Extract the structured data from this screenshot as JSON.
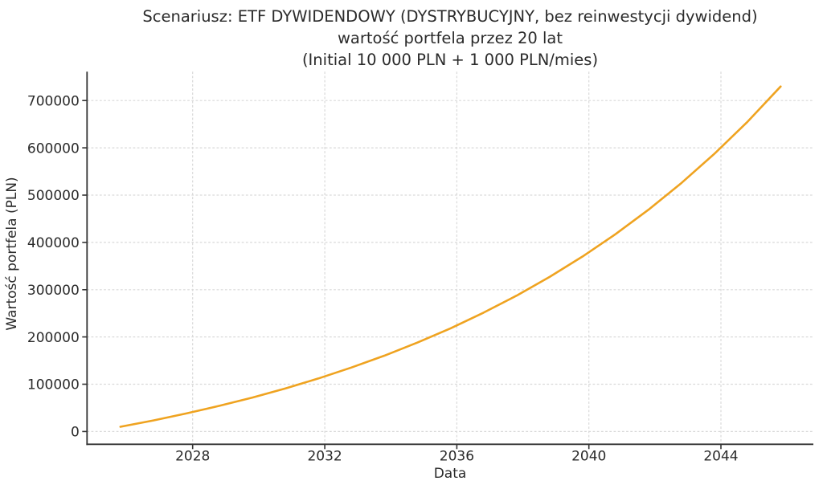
{
  "chart_data": {
    "type": "line",
    "title_lines": [
      "Scenariusz: ETF DYWIDENDOWY (DYSTRYBUCYJNY, bez reinwestycji dywidend)",
      "wartość portfela przez 20 lat",
      "(Initial 10 000 PLN + 1 000 PLN/mies)"
    ],
    "xlabel": "Data",
    "ylabel": "Wartość portfela (PLN)",
    "x_ticks": [
      2028,
      2032,
      2036,
      2040,
      2044
    ],
    "y_ticks": [
      0,
      100000,
      200000,
      300000,
      400000,
      500000,
      600000,
      700000
    ],
    "xlim": [
      2024.8,
      2046.8
    ],
    "ylim": [
      -27000,
      761000
    ],
    "grid": true,
    "grid_style": "dashed",
    "legend_position": "none",
    "line_color": "#EFA320",
    "grid_color": "#d9d9d9",
    "spine_color": "#343434",
    "text_color": "#2b2b2b",
    "background_color": "#ffffff",
    "series": [
      {
        "x": [
          2025.81,
          2026.81,
          2027.81,
          2028.81,
          2029.81,
          2030.81,
          2031.81,
          2032.81,
          2033.81,
          2034.81,
          2035.81,
          2036.81,
          2037.81,
          2038.81,
          2039.81,
          2040.81,
          2041.81,
          2042.81,
          2043.81,
          2044.81,
          2045.81
        ],
        "y": [
          10000,
          23400,
          38200,
          54300,
          71900,
          91100,
          112200,
          135300,
          160500,
          188100,
          218300,
          251300,
          287400,
          327000,
          370200,
          417500,
          469300,
          525900,
          587900,
          655600,
          729800
        ]
      }
    ]
  }
}
